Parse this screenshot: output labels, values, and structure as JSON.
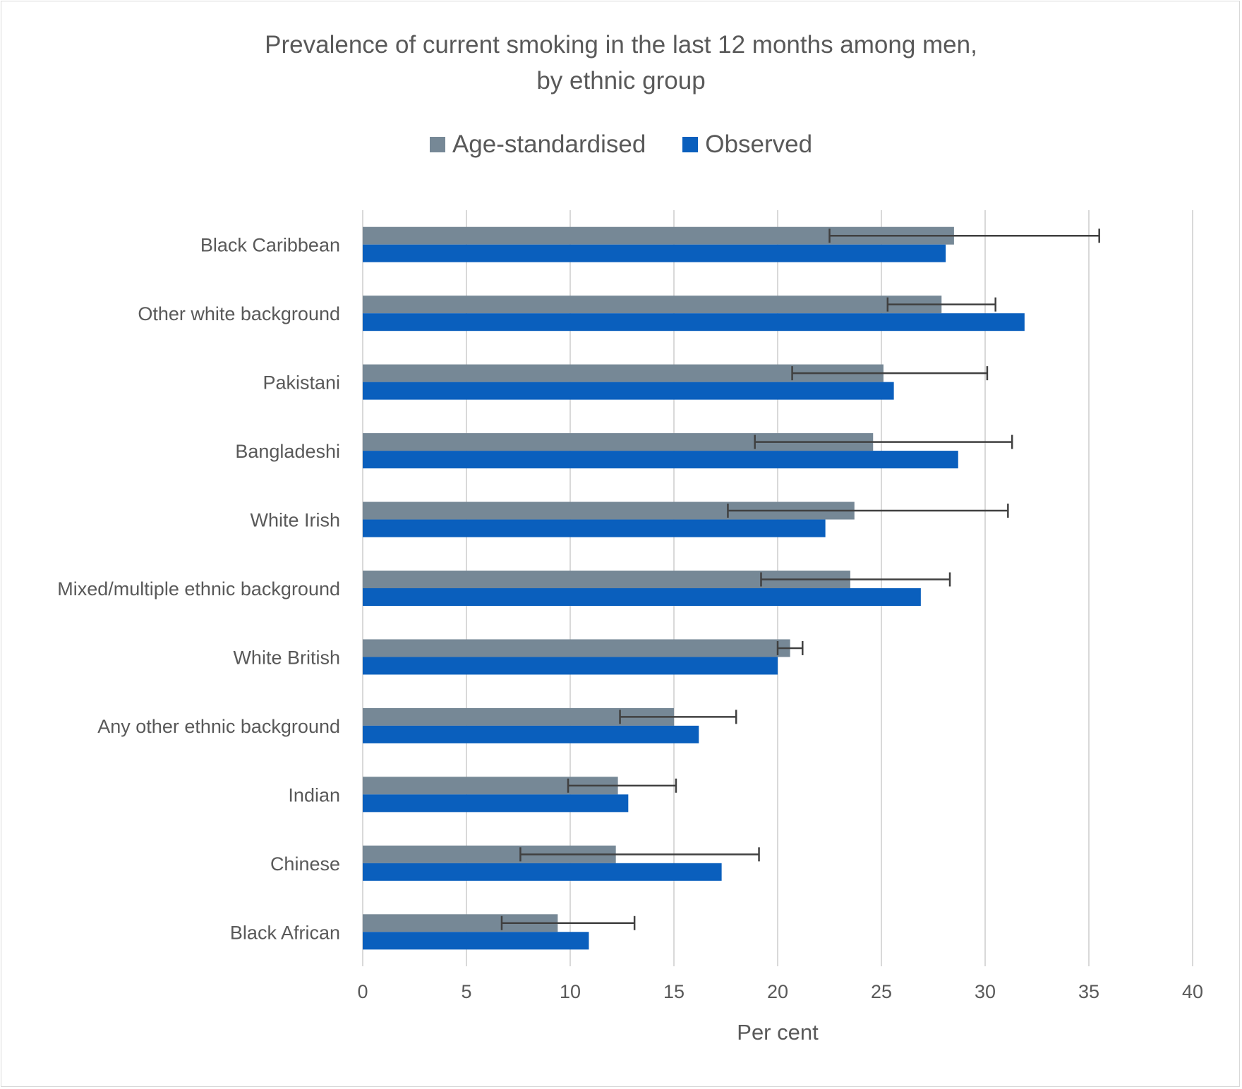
{
  "chart_data": {
    "type": "bar",
    "orientation": "horizontal",
    "title_lines": [
      "Prevalence of current smoking in the last 12 months among men,",
      "by ethnic group"
    ],
    "xlabel": "Per cent",
    "ylabel": "",
    "xlim": [
      0,
      40
    ],
    "xticks": [
      0,
      5,
      10,
      15,
      20,
      25,
      30,
      35,
      40
    ],
    "grid": "vertical",
    "legend_position": "top",
    "categories": [
      "Black Caribbean",
      "Other white background",
      "Pakistani",
      "Bangladeshi",
      "White Irish",
      "Mixed/multiple ethnic background",
      "White British",
      "Any other ethnic background",
      "Indian",
      "Chinese",
      "Black African"
    ],
    "series": [
      {
        "name": "Age-standardised",
        "color": "#768896",
        "values": [
          28.5,
          27.9,
          25.1,
          24.6,
          23.7,
          23.5,
          20.6,
          15.0,
          12.3,
          12.2,
          9.4
        ],
        "ci_low": [
          22.5,
          25.3,
          20.7,
          18.9,
          17.6,
          19.2,
          20.0,
          12.4,
          9.9,
          7.6,
          6.7
        ],
        "ci_high": [
          35.5,
          30.5,
          30.1,
          31.3,
          31.1,
          28.3,
          21.2,
          18.0,
          15.1,
          19.1,
          13.1
        ]
      },
      {
        "name": "Observed",
        "color": "#0a5fbd",
        "values": [
          28.1,
          31.9,
          25.6,
          28.7,
          22.3,
          26.9,
          20.0,
          16.2,
          12.8,
          17.3,
          10.9
        ]
      }
    ]
  }
}
